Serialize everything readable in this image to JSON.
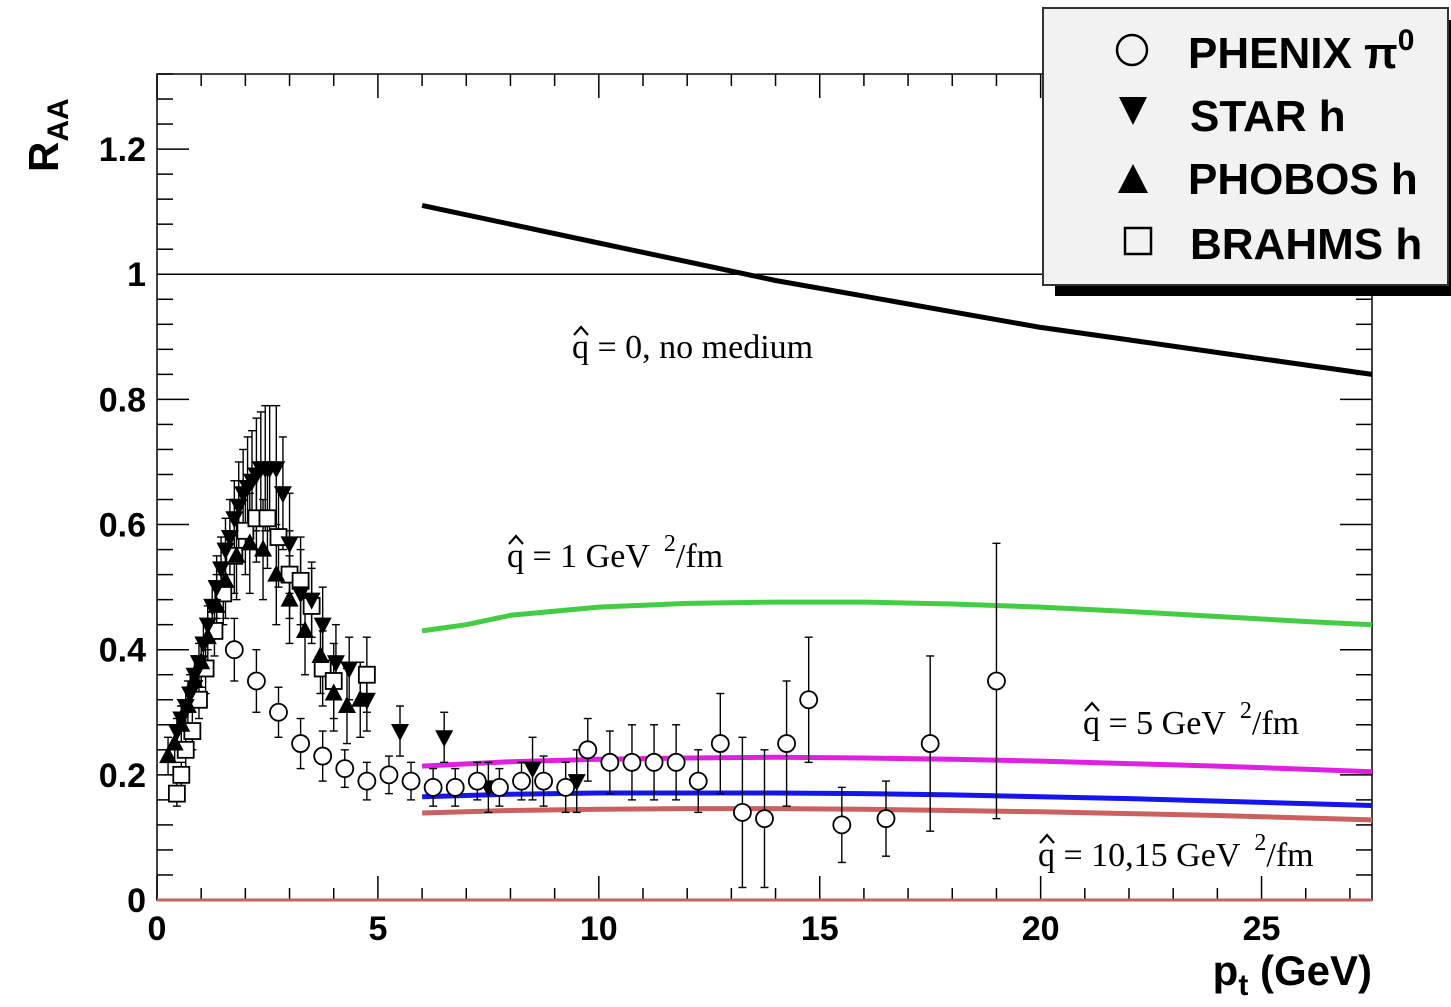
{
  "chart_data": {
    "type": "scatter",
    "xlabel": "p",
    "xlabel_sub": "t",
    "xlabel_unit": " (GeV)",
    "ylabel": "R",
    "ylabel_sub": "AA",
    "xlim": [
      0,
      27.5
    ],
    "ylim": [
      0,
      1.32
    ],
    "x_ticks": [
      {
        "value": 0,
        "label": "0"
      },
      {
        "value": 5,
        "label": "5"
      },
      {
        "value": 10,
        "label": "10"
      },
      {
        "value": 15,
        "label": "15"
      },
      {
        "value": 20,
        "label": "20"
      },
      {
        "value": 25,
        "label": "25"
      }
    ],
    "y_ticks": [
      {
        "value": 0,
        "label": "0"
      },
      {
        "value": 0.2,
        "label": "0.2"
      },
      {
        "value": 0.4,
        "label": "0.4"
      },
      {
        "value": 0.6,
        "label": "0.6"
      },
      {
        "value": 0.8,
        "label": "0.8"
      },
      {
        "value": 1,
        "label": "1"
      },
      {
        "value": 1.2,
        "label": "1.2"
      }
    ],
    "reference_line": 1,
    "legend_position": "top-right",
    "legend": [
      {
        "marker": "open-circle",
        "label": "PHENIX π",
        "sup": "0"
      },
      {
        "marker": "filled-triangle-down",
        "label": "STAR h"
      },
      {
        "marker": "filled-triangle-up",
        "label": "PHOBOS h"
      },
      {
        "marker": "open-square",
        "label": "BRAHMS h"
      }
    ],
    "data_series": [
      {
        "name": "PHENIX π0",
        "marker": "open-circle",
        "points": [
          {
            "x": 1.75,
            "y": 0.4,
            "err": 0.05
          },
          {
            "x": 2.25,
            "y": 0.35,
            "err": 0.05
          },
          {
            "x": 2.75,
            "y": 0.3,
            "err": 0.04
          },
          {
            "x": 3.25,
            "y": 0.25,
            "err": 0.04
          },
          {
            "x": 3.75,
            "y": 0.23,
            "err": 0.04
          },
          {
            "x": 4.25,
            "y": 0.21,
            "err": 0.03
          },
          {
            "x": 4.75,
            "y": 0.19,
            "err": 0.03
          },
          {
            "x": 5.25,
            "y": 0.2,
            "err": 0.03
          },
          {
            "x": 5.75,
            "y": 0.19,
            "err": 0.03
          },
          {
            "x": 6.25,
            "y": 0.18,
            "err": 0.03
          },
          {
            "x": 6.75,
            "y": 0.18,
            "err": 0.03
          },
          {
            "x": 7.25,
            "y": 0.19,
            "err": 0.03
          },
          {
            "x": 7.75,
            "y": 0.18,
            "err": 0.03
          },
          {
            "x": 8.25,
            "y": 0.19,
            "err": 0.03
          },
          {
            "x": 8.75,
            "y": 0.19,
            "err": 0.04
          },
          {
            "x": 9.25,
            "y": 0.18,
            "err": 0.04
          },
          {
            "x": 9.75,
            "y": 0.24,
            "err": 0.05
          },
          {
            "x": 10.25,
            "y": 0.22,
            "err": 0.05
          },
          {
            "x": 10.75,
            "y": 0.22,
            "err": 0.06
          },
          {
            "x": 11.25,
            "y": 0.22,
            "err": 0.06
          },
          {
            "x": 11.75,
            "y": 0.22,
            "err": 0.06
          },
          {
            "x": 12.25,
            "y": 0.19,
            "err": 0.05
          },
          {
            "x": 12.75,
            "y": 0.25,
            "err": 0.08
          },
          {
            "x": 13.25,
            "y": 0.14,
            "err": 0.12
          },
          {
            "x": 13.75,
            "y": 0.13,
            "err": 0.11
          },
          {
            "x": 14.25,
            "y": 0.25,
            "err": 0.1
          },
          {
            "x": 14.75,
            "y": 0.32,
            "err": 0.1
          },
          {
            "x": 15.5,
            "y": 0.12,
            "err": 0.06
          },
          {
            "x": 16.5,
            "y": 0.13,
            "err": 0.06
          },
          {
            "x": 17.5,
            "y": 0.25,
            "err": 0.14
          },
          {
            "x": 19.0,
            "y": 0.35,
            "err": 0.22
          }
        ]
      },
      {
        "name": "STAR h",
        "marker": "filled-triangle-down",
        "points": [
          {
            "x": 0.45,
            "y": 0.27,
            "err": 0.02
          },
          {
            "x": 0.55,
            "y": 0.29,
            "err": 0.02
          },
          {
            "x": 0.65,
            "y": 0.31,
            "err": 0.03
          },
          {
            "x": 0.75,
            "y": 0.33,
            "err": 0.03
          },
          {
            "x": 0.85,
            "y": 0.36,
            "err": 0.03
          },
          {
            "x": 0.95,
            "y": 0.38,
            "err": 0.03
          },
          {
            "x": 1.05,
            "y": 0.41,
            "err": 0.04
          },
          {
            "x": 1.15,
            "y": 0.44,
            "err": 0.04
          },
          {
            "x": 1.25,
            "y": 0.47,
            "err": 0.04
          },
          {
            "x": 1.35,
            "y": 0.5,
            "err": 0.05
          },
          {
            "x": 1.45,
            "y": 0.53,
            "err": 0.05
          },
          {
            "x": 1.55,
            "y": 0.56,
            "err": 0.05
          },
          {
            "x": 1.65,
            "y": 0.58,
            "err": 0.06
          },
          {
            "x": 1.75,
            "y": 0.61,
            "err": 0.06
          },
          {
            "x": 1.85,
            "y": 0.63,
            "err": 0.07
          },
          {
            "x": 1.95,
            "y": 0.65,
            "err": 0.07
          },
          {
            "x": 2.05,
            "y": 0.66,
            "err": 0.08
          },
          {
            "x": 2.15,
            "y": 0.67,
            "err": 0.08
          },
          {
            "x": 2.25,
            "y": 0.68,
            "err": 0.09
          },
          {
            "x": 2.35,
            "y": 0.69,
            "err": 0.09
          },
          {
            "x": 2.45,
            "y": 0.69,
            "err": 0.1
          },
          {
            "x": 2.55,
            "y": 0.69,
            "err": 0.1
          },
          {
            "x": 2.7,
            "y": 0.69,
            "err": 0.1
          },
          {
            "x": 2.85,
            "y": 0.65,
            "err": 0.09
          },
          {
            "x": 3.0,
            "y": 0.57,
            "err": 0.08
          },
          {
            "x": 3.25,
            "y": 0.49,
            "err": 0.07
          },
          {
            "x": 3.5,
            "y": 0.48,
            "err": 0.06
          },
          {
            "x": 3.75,
            "y": 0.44,
            "err": 0.06
          },
          {
            "x": 4.05,
            "y": 0.38,
            "err": 0.06
          },
          {
            "x": 4.35,
            "y": 0.37,
            "err": 0.05
          },
          {
            "x": 4.75,
            "y": 0.32,
            "err": 0.05
          },
          {
            "x": 5.5,
            "y": 0.27,
            "err": 0.04
          },
          {
            "x": 6.5,
            "y": 0.26,
            "err": 0.04
          },
          {
            "x": 7.5,
            "y": 0.18,
            "err": 0.04
          },
          {
            "x": 8.5,
            "y": 0.21,
            "err": 0.05
          },
          {
            "x": 9.5,
            "y": 0.19,
            "err": 0.05
          }
        ]
      },
      {
        "name": "PHOBOS h",
        "marker": "filled-triangle-up",
        "points": [
          {
            "x": 0.25,
            "y": 0.23,
            "err": 0.03
          },
          {
            "x": 0.4,
            "y": 0.25,
            "err": 0.03
          },
          {
            "x": 0.55,
            "y": 0.28,
            "err": 0.03
          },
          {
            "x": 0.7,
            "y": 0.31,
            "err": 0.04
          },
          {
            "x": 0.85,
            "y": 0.35,
            "err": 0.04
          },
          {
            "x": 1.0,
            "y": 0.38,
            "err": 0.04
          },
          {
            "x": 1.15,
            "y": 0.42,
            "err": 0.05
          },
          {
            "x": 1.35,
            "y": 0.47,
            "err": 0.05
          },
          {
            "x": 1.55,
            "y": 0.51,
            "err": 0.06
          },
          {
            "x": 1.8,
            "y": 0.55,
            "err": 0.07
          },
          {
            "x": 2.1,
            "y": 0.57,
            "err": 0.08
          },
          {
            "x": 2.4,
            "y": 0.56,
            "err": 0.08
          },
          {
            "x": 2.7,
            "y": 0.52,
            "err": 0.08
          },
          {
            "x": 3.0,
            "y": 0.48,
            "err": 0.07
          },
          {
            "x": 3.35,
            "y": 0.43,
            "err": 0.07
          },
          {
            "x": 3.7,
            "y": 0.39,
            "err": 0.06
          },
          {
            "x": 4.0,
            "y": 0.33,
            "err": 0.06
          },
          {
            "x": 4.3,
            "y": 0.31,
            "err": 0.06
          },
          {
            "x": 4.6,
            "y": 0.32,
            "err": 0.06
          }
        ]
      },
      {
        "name": "BRAHMS h",
        "marker": "open-square",
        "points": [
          {
            "x": 0.45,
            "y": 0.17,
            "err": 0.02
          },
          {
            "x": 0.55,
            "y": 0.2,
            "err": 0.02
          },
          {
            "x": 0.65,
            "y": 0.24,
            "err": 0.03
          },
          {
            "x": 0.8,
            "y": 0.27,
            "err": 0.03
          },
          {
            "x": 0.95,
            "y": 0.32,
            "err": 0.03
          },
          {
            "x": 1.1,
            "y": 0.37,
            "err": 0.04
          },
          {
            "x": 1.3,
            "y": 0.43,
            "err": 0.04
          },
          {
            "x": 1.5,
            "y": 0.49,
            "err": 0.05
          },
          {
            "x": 1.75,
            "y": 0.55,
            "err": 0.06
          },
          {
            "x": 2.0,
            "y": 0.59,
            "err": 0.07
          },
          {
            "x": 2.25,
            "y": 0.61,
            "err": 0.07
          },
          {
            "x": 2.5,
            "y": 0.61,
            "err": 0.08
          },
          {
            "x": 2.75,
            "y": 0.58,
            "err": 0.08
          },
          {
            "x": 3.0,
            "y": 0.52,
            "err": 0.07
          },
          {
            "x": 3.25,
            "y": 0.51,
            "err": 0.07
          },
          {
            "x": 3.5,
            "y": 0.47,
            "err": 0.06
          },
          {
            "x": 3.75,
            "y": 0.37,
            "err": 0.06
          },
          {
            "x": 4.0,
            "y": 0.35,
            "err": 0.06
          },
          {
            "x": 4.75,
            "y": 0.36,
            "err": 0.06
          }
        ]
      }
    ],
    "model_curves": [
      {
        "name": "q = 0, no medium",
        "color": "#000000",
        "x": [
          6,
          8,
          10,
          12,
          14,
          16,
          18,
          20,
          22,
          24,
          26,
          27.5
        ],
        "y": [
          1.11,
          1.08,
          1.05,
          1.02,
          0.99,
          0.965,
          0.94,
          0.915,
          0.895,
          0.875,
          0.855,
          0.84
        ]
      },
      {
        "name": "q = 1 GeV^2/fm",
        "color": "#44cc44",
        "x": [
          6,
          7,
          8,
          10,
          12,
          14,
          16,
          18,
          20,
          22,
          24,
          26,
          27.5
        ],
        "y": [
          0.43,
          0.44,
          0.455,
          0.468,
          0.474,
          0.476,
          0.476,
          0.473,
          0.468,
          0.461,
          0.453,
          0.445,
          0.44
        ]
      },
      {
        "name": "q = 5 GeV^2/fm",
        "color": "#e020e0",
        "x": [
          6,
          8,
          10,
          12,
          14,
          16,
          18,
          20,
          22,
          24,
          26,
          27.5
        ],
        "y": [
          0.214,
          0.221,
          0.225,
          0.227,
          0.228,
          0.227,
          0.225,
          0.222,
          0.218,
          0.214,
          0.209,
          0.205
        ]
      },
      {
        "name": "q = 10 GeV^2/fm",
        "color": "#1515ee",
        "x": [
          6,
          8,
          10,
          12,
          14,
          16,
          18,
          20,
          22,
          24,
          26,
          27.5
        ],
        "y": [
          0.165,
          0.169,
          0.171,
          0.171,
          0.171,
          0.17,
          0.168,
          0.165,
          0.162,
          0.158,
          0.154,
          0.151
        ]
      },
      {
        "name": "q = 15 GeV^2/fm",
        "color": "#cc6060",
        "x": [
          6,
          8,
          10,
          12,
          14,
          16,
          18,
          20,
          22,
          24,
          26,
          27.5
        ],
        "y": [
          0.139,
          0.143,
          0.145,
          0.146,
          0.146,
          0.145,
          0.143,
          0.141,
          0.138,
          0.135,
          0.131,
          0.128
        ]
      }
    ],
    "annotations": [
      {
        "id": "ann-q0",
        "q": "q",
        "text": " = 0, no medium"
      },
      {
        "id": "ann-q1",
        "q": "q",
        "text": " = 1 GeV",
        "sup": "2",
        "tail": "/fm"
      },
      {
        "id": "ann-q5",
        "q": "q",
        "text": " = 5 GeV",
        "sup": "2",
        "tail": "/fm"
      },
      {
        "id": "ann-q10",
        "q": "q",
        "text": " = 10,15 GeV",
        "sup": "2",
        "tail": "/fm"
      }
    ]
  }
}
